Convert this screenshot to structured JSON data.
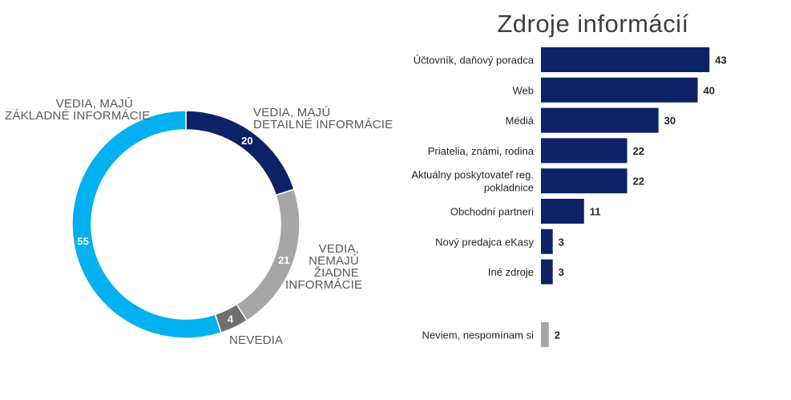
{
  "chart_data": [
    {
      "type": "pie",
      "variant": "donut",
      "title": "",
      "slices": [
        {
          "name": "VEDIA, MAJÚ DETAILNÉ INFORMÁCIE",
          "label_lines": [
            "VEDIA, MAJÚ",
            "DETAILNÉ INFORMÁCIE"
          ],
          "value": 20,
          "color": "#0d2166"
        },
        {
          "name": "VEDIA, NEMAJÚ ŽIADNE INFORMÁCIE",
          "label_lines": [
            "VEDIA,",
            "NEMAJÚ",
            "ŽIADNE",
            "INFORMÁCIE"
          ],
          "value": 21,
          "color": "#a6a6a6"
        },
        {
          "name": "NEVEDIA",
          "label_lines": [
            "NEVEDIA"
          ],
          "value": 4,
          "color": "#6e6e6e"
        },
        {
          "name": "VEDIA, MAJÚ ZÁKLADNÉ INFORMÁCIE",
          "label_lines": [
            "VEDIA, MAJÚ",
            "ZÁKLADNÉ INFORMÁCIE"
          ],
          "value": 55,
          "color": "#00b0f0"
        }
      ],
      "start_angle_deg": 0,
      "direction": "clockwise",
      "value_label_color": "#ffffff"
    },
    {
      "type": "bar",
      "orientation": "horizontal",
      "title": "Zdroje informácií",
      "xlabel": "",
      "ylabel": "",
      "xlim": [
        0,
        45
      ],
      "categories": [
        [
          "Účtovník, daňový poradca"
        ],
        [
          "Web"
        ],
        [
          "Médiá"
        ],
        [
          "Priatelia, známi, rodina"
        ],
        [
          "Aktuálny poskytovateľ reg.",
          "pokladnice"
        ],
        [
          "Obchodní partneri"
        ],
        [
          "Nový predajca eKasy"
        ],
        [
          "Iné zdroje"
        ],
        [
          "Neviem, nespomínam si"
        ]
      ],
      "values": [
        43,
        40,
        30,
        22,
        22,
        11,
        3,
        3,
        2
      ],
      "colors": [
        "#0d2166",
        "#0d2166",
        "#0d2166",
        "#0d2166",
        "#0d2166",
        "#0d2166",
        "#0d2166",
        "#0d2166",
        "#a6a6a6"
      ],
      "separated_last_category": true,
      "gridlines": false
    }
  ]
}
